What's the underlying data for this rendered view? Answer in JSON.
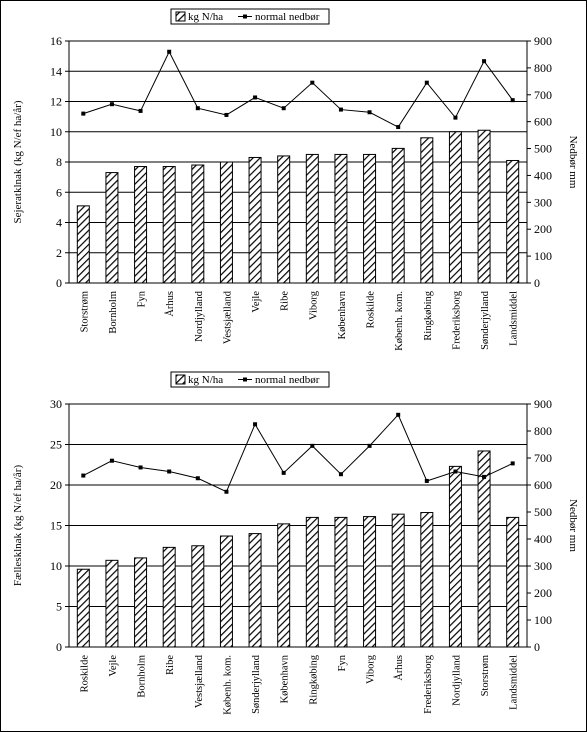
{
  "colors": {
    "bar_stroke": "#000000",
    "bar_hatch": "#000000",
    "line": "#000000",
    "grid": "#000000",
    "background": "#ffffff"
  },
  "chart_data": [
    {
      "type": "bar",
      "ylabel": "Sejeratklnak (kg N/ef ha/år)",
      "y2label": "Nedbør mm",
      "ylim": [
        0,
        16
      ],
      "yticks": [
        0,
        2,
        4,
        6,
        8,
        10,
        12,
        14,
        16
      ],
      "y2lim": [
        0,
        900
      ],
      "y2ticks": [
        0,
        100,
        200,
        300,
        400,
        500,
        600,
        700,
        800,
        900
      ],
      "legend": {
        "bar": "kg N/ha",
        "line": "normal nedbør"
      },
      "legend_position": "top-center",
      "grid": true,
      "categories": [
        "Storstrøm",
        "Bornholm",
        "Fyn",
        "Århus",
        "Nordjylland",
        "Vestsjælland",
        "Vejle",
        "Ribe",
        "Viborg",
        "København",
        "Roskilde",
        "Københ. kom.",
        "Ringkøbing",
        "Frederiksborg",
        "Sønderjylland",
        "Landsmiddel"
      ],
      "series": [
        {
          "name": "kg N/ha",
          "type": "bar",
          "axis": "left",
          "values": [
            5.1,
            7.3,
            7.7,
            7.7,
            7.8,
            8.0,
            8.3,
            8.4,
            8.5,
            8.5,
            8.5,
            8.9,
            9.6,
            10.0,
            10.1,
            8.1
          ]
        },
        {
          "name": "normal nedbør",
          "type": "line",
          "axis": "right",
          "values": [
            630,
            665,
            640,
            860,
            650,
            625,
            690,
            650,
            745,
            645,
            635,
            580,
            745,
            615,
            825,
            680
          ]
        }
      ]
    },
    {
      "type": "bar",
      "ylabel": "Fællesklnak (kg N/ef ha/år)",
      "y2label": "Nedbør mm",
      "ylim": [
        0,
        30
      ],
      "yticks": [
        0,
        5,
        10,
        15,
        20,
        25,
        30
      ],
      "y2lim": [
        0,
        900
      ],
      "y2ticks": [
        0,
        100,
        200,
        300,
        400,
        500,
        600,
        700,
        800,
        900
      ],
      "legend": {
        "bar": "kg N/ha",
        "line": "normal nedbør"
      },
      "legend_position": "top-center",
      "grid": true,
      "categories": [
        "Roskilde",
        "Vejle",
        "Bornholm",
        "Ribe",
        "Vestsjælland",
        "Københ. kom.",
        "Sønderjylland",
        "København",
        "Ringkøbing",
        "Fyn",
        "Viborg",
        "Århus",
        "Frederiksborg",
        "Nordjylland",
        "Storstrøm",
        "Landsmiddel"
      ],
      "series": [
        {
          "name": "kg N/ha",
          "type": "bar",
          "axis": "left",
          "values": [
            9.6,
            10.7,
            11.0,
            12.3,
            12.5,
            13.7,
            14.0,
            15.2,
            16.0,
            16.0,
            16.1,
            16.4,
            16.6,
            22.3,
            24.2,
            16.0
          ]
        },
        {
          "name": "normal nedbør",
          "type": "line",
          "axis": "right",
          "values": [
            635,
            690,
            665,
            650,
            625,
            575,
            825,
            645,
            745,
            640,
            745,
            860,
            615,
            650,
            630,
            680
          ]
        }
      ]
    }
  ]
}
